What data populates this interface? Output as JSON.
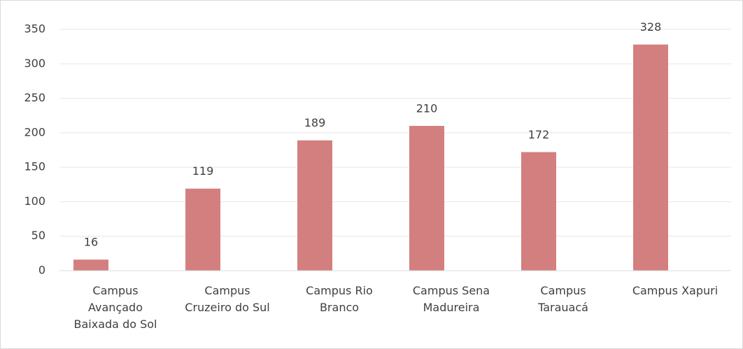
{
  "chart_data": {
    "type": "bar",
    "categories": [
      "Campus Avançado Baixada do Sol",
      "Campus Cruzeiro do Sul",
      "Campus Rio Branco",
      "Campus Sena Madureira",
      "Campus Tarauacá",
      "Campus Xapuri"
    ],
    "values": [
      16,
      119,
      189,
      210,
      172,
      328
    ],
    "color": "#d47f7f",
    "ylim": [
      0,
      350
    ],
    "yticks": [
      0,
      50,
      100,
      150,
      200,
      250,
      300,
      350
    ],
    "grid": true
  }
}
